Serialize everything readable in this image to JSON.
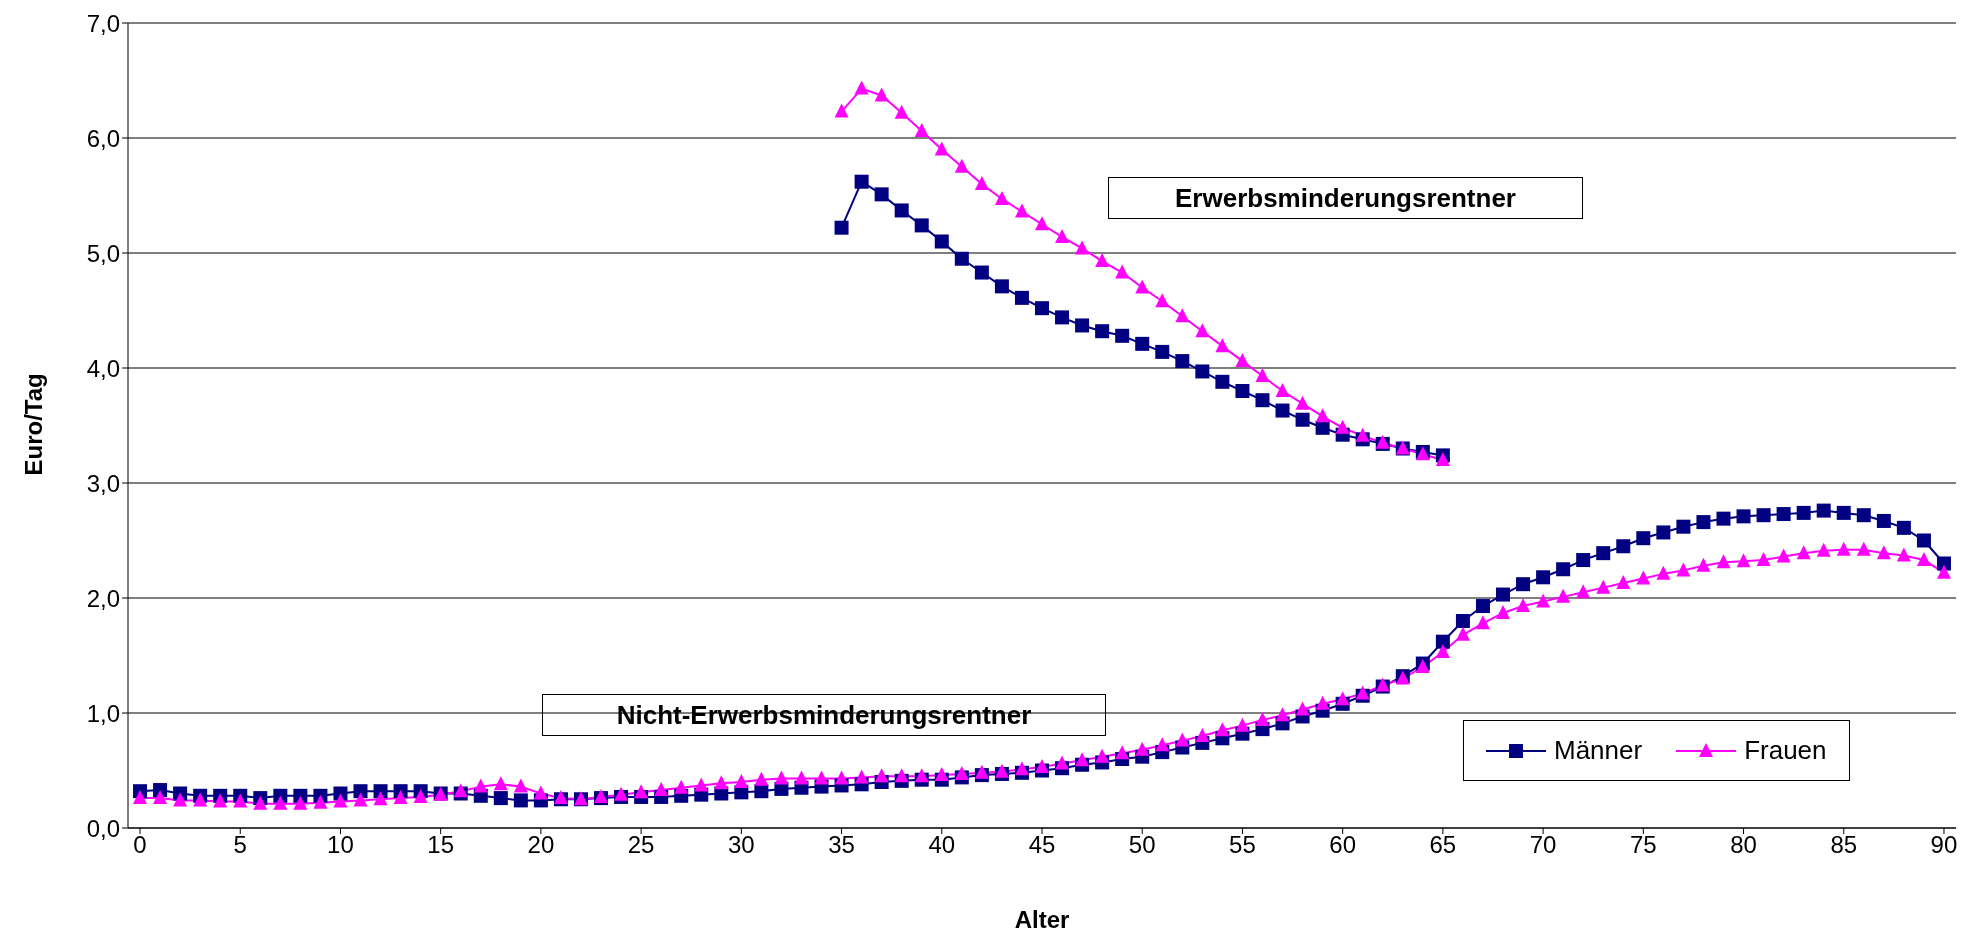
{
  "chart_data": {
    "type": "line",
    "xlabel": "Alter",
    "ylabel": "Euro/Tag",
    "x": [
      0,
      1,
      2,
      3,
      4,
      5,
      6,
      7,
      8,
      9,
      10,
      11,
      12,
      13,
      14,
      15,
      16,
      17,
      18,
      19,
      20,
      21,
      22,
      23,
      24,
      25,
      26,
      27,
      28,
      29,
      30,
      31,
      32,
      33,
      34,
      35,
      36,
      37,
      38,
      39,
      40,
      41,
      42,
      43,
      44,
      45,
      46,
      47,
      48,
      49,
      50,
      51,
      52,
      53,
      54,
      55,
      56,
      57,
      58,
      59,
      60,
      61,
      62,
      63,
      64,
      65,
      66,
      67,
      68,
      69,
      70,
      71,
      72,
      73,
      74,
      75,
      76,
      77,
      78,
      79,
      80,
      81,
      82,
      83,
      84,
      85,
      86,
      87,
      88,
      89,
      90
    ],
    "series": [
      {
        "name": "Männer",
        "color": "#000080",
        "marker": "square",
        "values": [
          0.32,
          0.33,
          0.3,
          0.28,
          0.28,
          0.28,
          0.26,
          0.28,
          0.28,
          0.28,
          0.3,
          0.32,
          0.32,
          0.32,
          0.32,
          0.3,
          0.3,
          0.28,
          0.26,
          0.24,
          0.24,
          0.25,
          0.25,
          0.26,
          0.27,
          0.27,
          0.27,
          0.28,
          0.29,
          0.3,
          0.31,
          0.32,
          0.34,
          0.35,
          0.36,
          0.37,
          0.38,
          0.4,
          0.41,
          0.42,
          0.42,
          0.44,
          0.46,
          0.47,
          0.48,
          0.5,
          0.52,
          0.55,
          0.57,
          0.6,
          0.62,
          0.66,
          0.7,
          0.74,
          0.78,
          0.82,
          0.86,
          0.91,
          0.97,
          1.02,
          1.08,
          1.15,
          1.23,
          1.32,
          1.43,
          1.62,
          1.8,
          1.93,
          2.03,
          2.12,
          2.18,
          2.25,
          2.33,
          2.39,
          2.45,
          2.52,
          2.57,
          2.62,
          2.66,
          2.69,
          2.71,
          2.72,
          2.73,
          2.74,
          2.76,
          2.74,
          2.72,
          2.67,
          2.61,
          2.5,
          2.3
        ]
      },
      {
        "name": "Frauen",
        "color": "#ff00ff",
        "marker": "triangle",
        "values": [
          0.26,
          0.26,
          0.24,
          0.24,
          0.23,
          0.23,
          0.21,
          0.21,
          0.21,
          0.22,
          0.23,
          0.24,
          0.25,
          0.26,
          0.27,
          0.29,
          0.32,
          0.36,
          0.38,
          0.36,
          0.3,
          0.26,
          0.25,
          0.27,
          0.29,
          0.31,
          0.33,
          0.35,
          0.37,
          0.39,
          0.4,
          0.42,
          0.43,
          0.43,
          0.43,
          0.43,
          0.44,
          0.45,
          0.45,
          0.45,
          0.46,
          0.47,
          0.48,
          0.49,
          0.51,
          0.53,
          0.56,
          0.59,
          0.62,
          0.65,
          0.68,
          0.72,
          0.76,
          0.8,
          0.85,
          0.89,
          0.94,
          0.98,
          1.03,
          1.08,
          1.12,
          1.17,
          1.24,
          1.3,
          1.4,
          1.53,
          1.68,
          1.78,
          1.87,
          1.93,
          1.97,
          2.01,
          2.05,
          2.09,
          2.13,
          2.17,
          2.21,
          2.24,
          2.28,
          2.31,
          2.32,
          2.33,
          2.36,
          2.39,
          2.41,
          2.42,
          2.42,
          2.39,
          2.37,
          2.33,
          2.22
        ]
      },
      {
        "color": "#000080",
        "marker": "square",
        "x": [
          35,
          36,
          37,
          38,
          39,
          40,
          41,
          42,
          43,
          44,
          45,
          46,
          47,
          48,
          49,
          50,
          51,
          52,
          53,
          54,
          55,
          56,
          57,
          58,
          59,
          60,
          61,
          62,
          63,
          64,
          65
        ],
        "values": [
          5.22,
          5.62,
          5.51,
          5.37,
          5.24,
          5.1,
          4.95,
          4.83,
          4.71,
          4.61,
          4.52,
          4.44,
          4.37,
          4.32,
          4.28,
          4.21,
          4.14,
          4.06,
          3.97,
          3.88,
          3.8,
          3.72,
          3.63,
          3.55,
          3.48,
          3.42,
          3.38,
          3.34,
          3.3,
          3.27,
          3.24
        ]
      },
      {
        "color": "#ff00ff",
        "marker": "triangle",
        "x": [
          35,
          36,
          37,
          38,
          39,
          40,
          41,
          42,
          43,
          44,
          45,
          46,
          47,
          48,
          49,
          50,
          51,
          52,
          53,
          54,
          55,
          56,
          57,
          58,
          59,
          60,
          61,
          62,
          63,
          64,
          65
        ],
        "values": [
          6.23,
          6.43,
          6.37,
          6.22,
          6.06,
          5.9,
          5.75,
          5.6,
          5.47,
          5.36,
          5.25,
          5.14,
          5.04,
          4.93,
          4.83,
          4.7,
          4.58,
          4.45,
          4.32,
          4.19,
          4.06,
          3.93,
          3.8,
          3.69,
          3.58,
          3.48,
          3.41,
          3.35,
          3.3,
          3.25,
          3.2
        ]
      }
    ],
    "xlim": [
      -0.6,
      90.6
    ],
    "xticks": [
      0,
      5,
      10,
      15,
      20,
      25,
      30,
      35,
      40,
      45,
      50,
      55,
      60,
      65,
      70,
      75,
      80,
      85,
      90
    ],
    "ylim": [
      0,
      7
    ],
    "yticks": [
      {
        "value": 0,
        "label": "0,0"
      },
      {
        "value": 1,
        "label": "1,0"
      },
      {
        "value": 2,
        "label": "2,0"
      },
      {
        "value": 3,
        "label": "3,0"
      },
      {
        "value": 4,
        "label": "4,0"
      },
      {
        "value": 5,
        "label": "5,0"
      },
      {
        "value": 6,
        "label": "6,0"
      },
      {
        "value": 7,
        "label": "7,0"
      }
    ],
    "grid": "y",
    "legend": "bottom right",
    "line_style": "solid",
    "annotations": [
      "Erwerbsminderungsrentner",
      "Nicht-Erwerbsminderungsrentner"
    ]
  }
}
